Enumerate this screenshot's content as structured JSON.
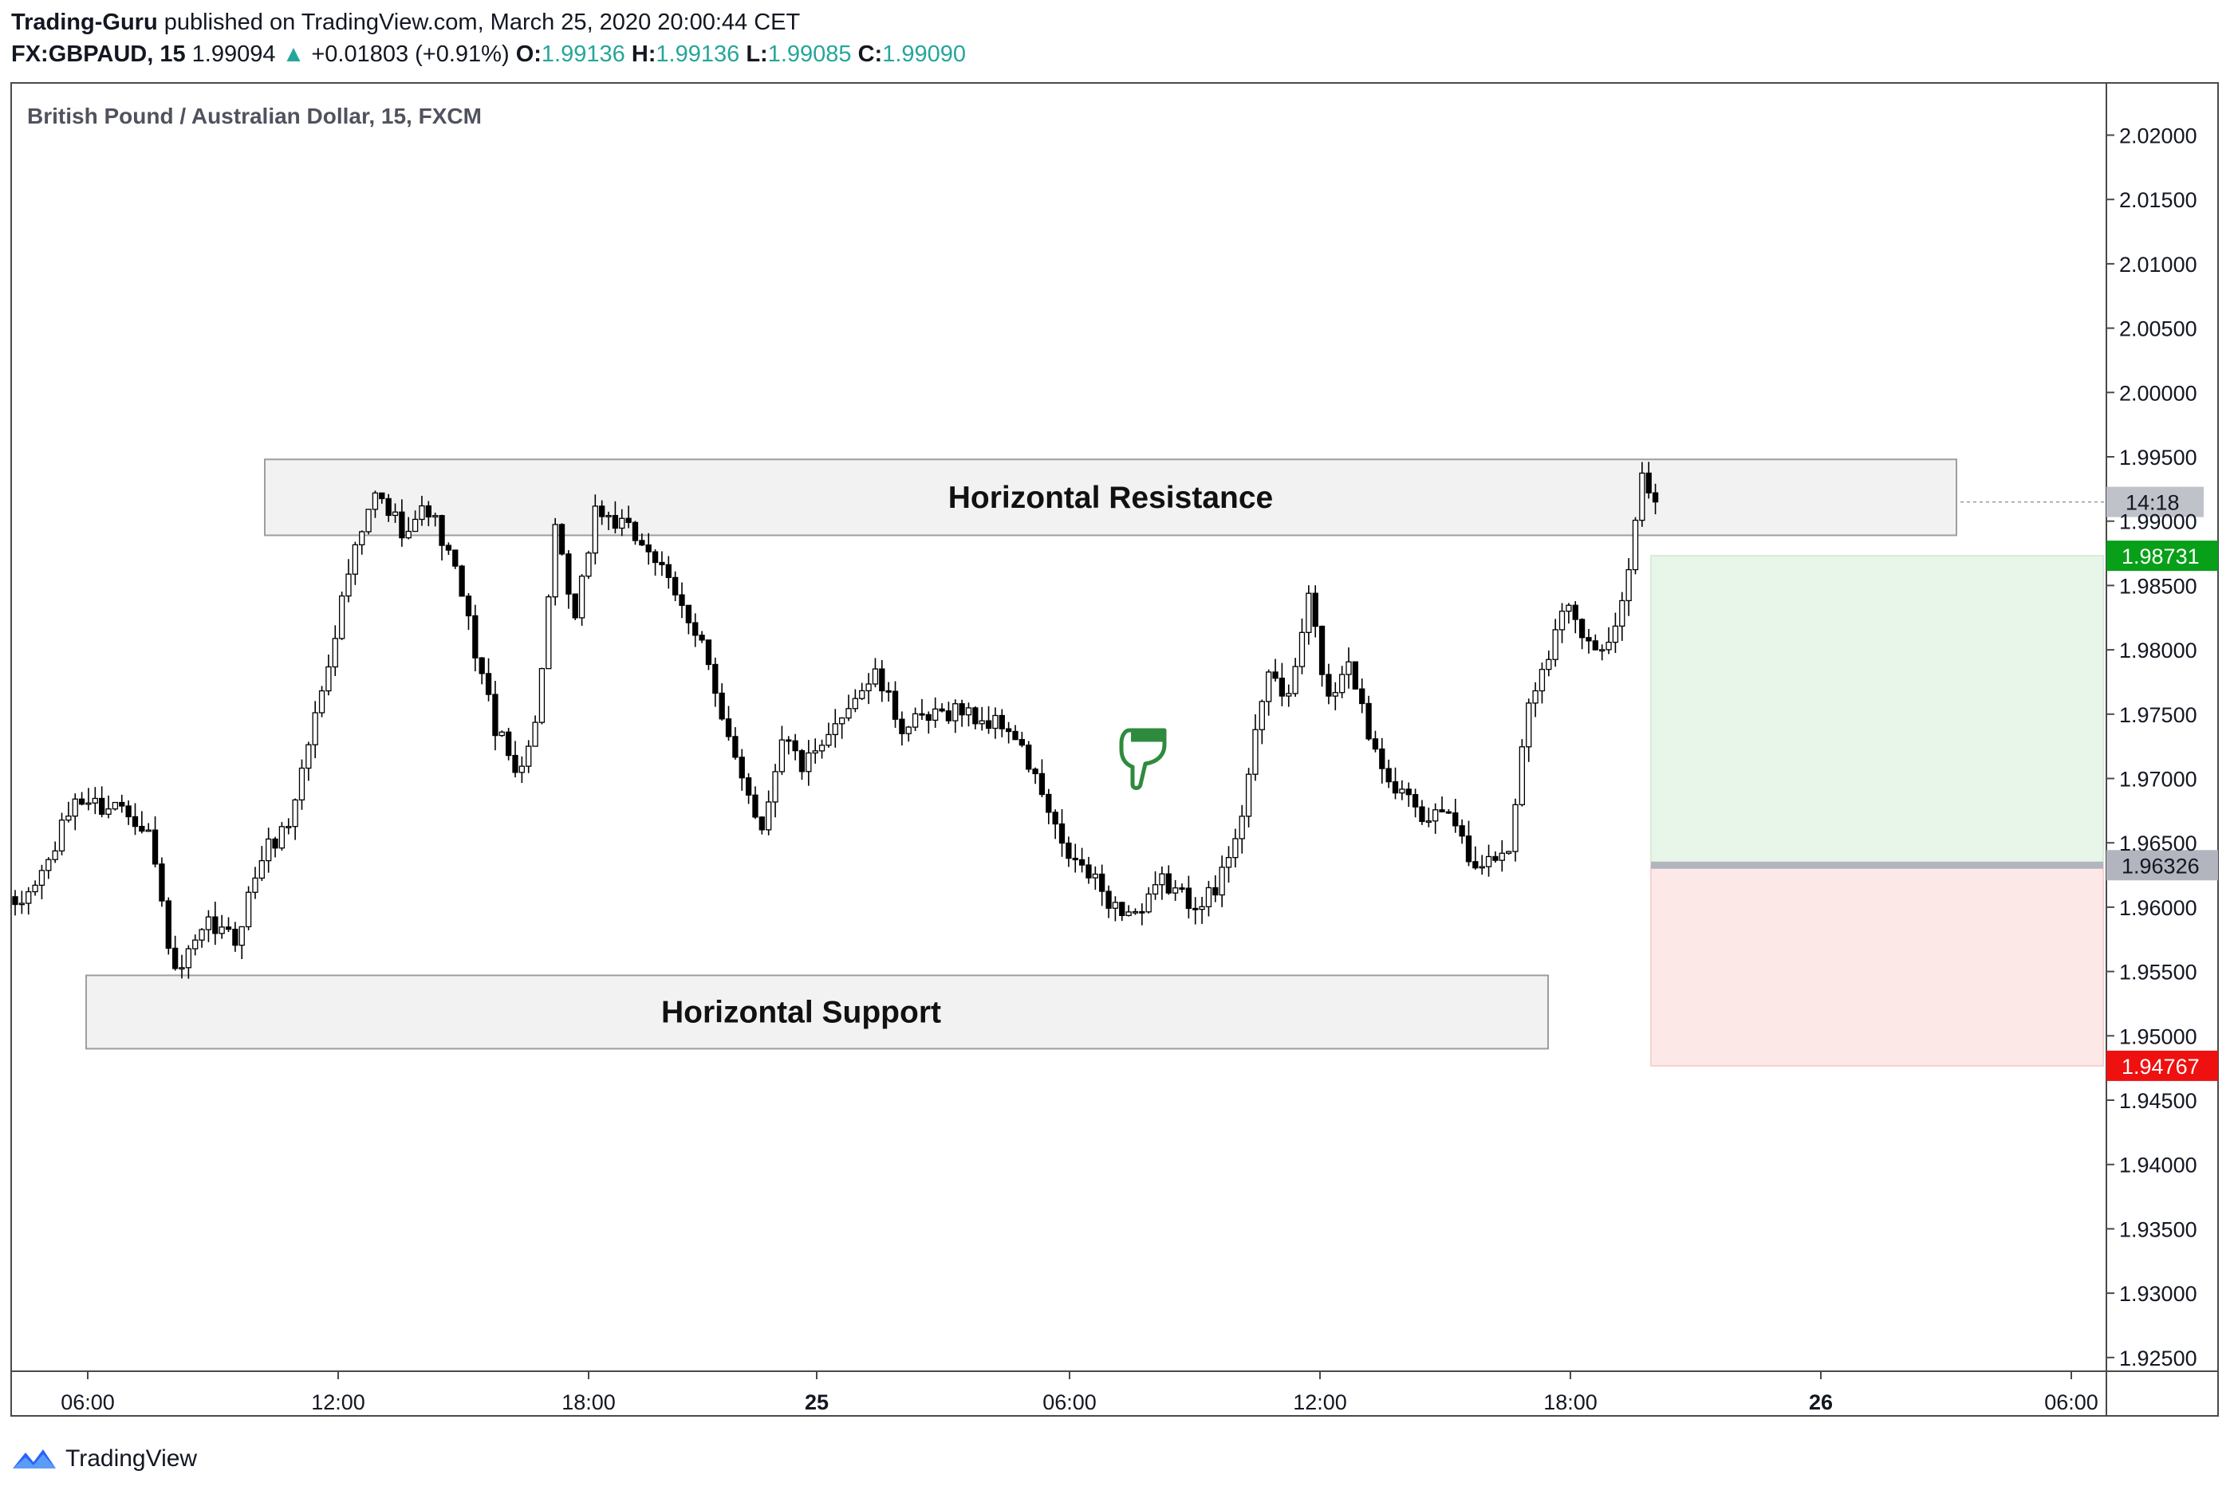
{
  "header": {
    "author": "Trading-Guru",
    "published": "published on TradingView.com, March 25, 2020 20:00:44 CET",
    "symbol": "FX:GBPAUD, 15",
    "last": "1.99094",
    "change_arrow": "▲",
    "change": "+0.01803 (+0.91%)",
    "o_label": "O:",
    "o_value": "1.99136",
    "h_label": "H:",
    "h_value": "1.99136",
    "l_label": "L:",
    "l_value": "1.99085",
    "c_label": "C:",
    "c_value": "1.99090"
  },
  "footer": {
    "brand": "TradingView",
    "icon": "tradingview-logo-icon"
  },
  "colors": {
    "up_body": "#ffffff",
    "down_body": "#000000",
    "wick": "#000000",
    "zone_fill": "#f2f2f2",
    "zone_border": "#9e9e9e",
    "profit_fill": "#e8f5e9",
    "loss_fill": "#fde8e8",
    "target_label": "#089f19",
    "stop_label": "#ef1010",
    "entry_line": "#b2b5be",
    "pointer_icon": "#2e8b3e"
  },
  "chart_data": {
    "type": "candlestick",
    "title": "British Pound / Australian Dollar, 15, FXCM",
    "y_ticks": [
      "2.02000",
      "2.01500",
      "2.01000",
      "2.00500",
      "2.00000",
      "1.99500",
      "1.99000",
      "1.98500",
      "1.98000",
      "1.97500",
      "1.97000",
      "1.96500",
      "1.96000",
      "1.95500",
      "1.95000",
      "1.94500",
      "1.94000",
      "1.93500",
      "1.93000",
      "1.92500"
    ],
    "ylim": [
      1.925,
      2.022
    ],
    "x_ticks": [
      {
        "label": "06:00",
        "bold": false
      },
      {
        "label": "12:00",
        "bold": false
      },
      {
        "label": "18:00",
        "bold": false
      },
      {
        "label": "25",
        "bold": true
      },
      {
        "label": "06:00",
        "bold": false
      },
      {
        "label": "12:00",
        "bold": false
      },
      {
        "label": "18:00",
        "bold": false
      },
      {
        "label": "26",
        "bold": true
      },
      {
        "label": "06:00",
        "bold": false
      }
    ],
    "series_anchors": [
      [
        0,
        1.9595
      ],
      [
        5,
        1.9635
      ],
      [
        9,
        1.9685
      ],
      [
        13,
        1.9678
      ],
      [
        16,
        1.968
      ],
      [
        20,
        1.966
      ],
      [
        24,
        1.9545
      ],
      [
        29,
        1.9585
      ],
      [
        33,
        1.9575
      ],
      [
        37,
        1.964
      ],
      [
        41,
        1.9665
      ],
      [
        46,
        1.977
      ],
      [
        50,
        1.986
      ],
      [
        54,
        1.992
      ],
      [
        58,
        1.9895
      ],
      [
        62,
        1.991
      ],
      [
        66,
        1.986
      ],
      [
        69,
        1.98
      ],
      [
        72,
        1.974
      ],
      [
        75,
        1.9705
      ],
      [
        78,
        1.974
      ],
      [
        81,
        1.989
      ],
      [
        84,
        1.982
      ],
      [
        87,
        1.991
      ],
      [
        91,
        1.9895
      ],
      [
        95,
        1.988
      ],
      [
        99,
        1.984
      ],
      [
        103,
        1.981
      ],
      [
        106,
        1.974
      ],
      [
        109,
        1.9705
      ],
      [
        112,
        1.966
      ],
      [
        115,
        1.9735
      ],
      [
        118,
        1.971
      ],
      [
        121,
        1.972
      ],
      [
        125,
        1.976
      ],
      [
        129,
        1.978
      ],
      [
        133,
        1.974
      ],
      [
        137,
        1.9745
      ],
      [
        141,
        1.9755
      ],
      [
        145,
        1.9745
      ],
      [
        149,
        1.974
      ],
      [
        153,
        1.97
      ],
      [
        157,
        1.9645
      ],
      [
        161,
        1.9625
      ],
      [
        165,
        1.96
      ],
      [
        169,
        1.9595
      ],
      [
        172,
        1.962
      ],
      [
        176,
        1.9605
      ],
      [
        180,
        1.961
      ],
      [
        184,
        1.9675
      ],
      [
        188,
        1.9785
      ],
      [
        191,
        1.976
      ],
      [
        194,
        1.984
      ],
      [
        197,
        1.976
      ],
      [
        200,
        1.9795
      ],
      [
        203,
        1.9735
      ],
      [
        207,
        1.9695
      ],
      [
        211,
        1.9665
      ],
      [
        215,
        1.968
      ],
      [
        218,
        1.964
      ],
      [
        221,
        1.9635
      ],
      [
        224,
        1.9645
      ],
      [
        227,
        1.976
      ],
      [
        230,
        1.98
      ],
      [
        233,
        1.984
      ],
      [
        236,
        1.9805
      ],
      [
        239,
        1.98
      ],
      [
        242,
        1.9855
      ],
      [
        244,
        1.9945
      ],
      [
        246,
        1.9912
      ]
    ],
    "annotations": [
      {
        "label": "Horizontal Resistance",
        "y_low": 1.9889,
        "y_high": 1.9948
      },
      {
        "label": "Horizontal Support",
        "y_low": 1.949,
        "y_high": 1.9547
      }
    ],
    "position": {
      "type": "long",
      "target": "1.98731",
      "entry": "1.96326",
      "stop": "1.94767"
    },
    "countdown": "14:18",
    "pointer_icon": "hand-pointing-down-icon"
  }
}
